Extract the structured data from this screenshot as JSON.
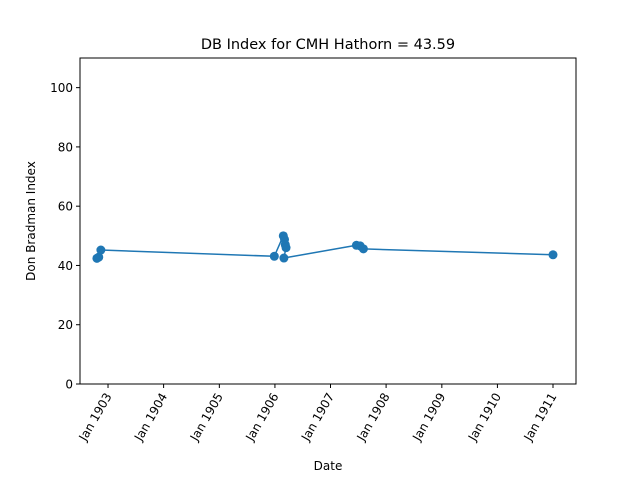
{
  "chart_data": {
    "type": "line",
    "title": "DB Index for CMH Hathorn = 43.59",
    "xlabel": "Date",
    "ylabel": "Don Bradman Index",
    "xlim": [
      "1902-07-01",
      "1911-06-01"
    ],
    "ylim": [
      0,
      110
    ],
    "yticks": [
      0,
      20,
      40,
      60,
      80,
      100
    ],
    "xticks": [
      {
        "date": "1903-01-01",
        "label": "Jan 1903"
      },
      {
        "date": "1904-01-01",
        "label": "Jan 1904"
      },
      {
        "date": "1905-01-01",
        "label": "Jan 1905"
      },
      {
        "date": "1906-01-01",
        "label": "Jan 1906"
      },
      {
        "date": "1907-01-01",
        "label": "Jan 1907"
      },
      {
        "date": "1908-01-01",
        "label": "Jan 1908"
      },
      {
        "date": "1909-01-01",
        "label": "Jan 1909"
      },
      {
        "date": "1910-01-01",
        "label": "Jan 1910"
      },
      {
        "date": "1911-01-01",
        "label": "Jan 1911"
      }
    ],
    "grid": false,
    "color": "#1f77b4",
    "series": [
      {
        "points": [
          {
            "x": "1902-10-20",
            "y": 42.4
          },
          {
            "x": "1902-11-01",
            "y": 42.8
          },
          {
            "x": "1902-11-15",
            "y": 45.2
          },
          {
            "x": "1905-12-28",
            "y": 43.1
          },
          {
            "x": "1906-02-25",
            "y": 50.0
          },
          {
            "x": "1906-03-05",
            "y": 48.8
          },
          {
            "x": "1906-03-10",
            "y": 47.0
          },
          {
            "x": "1906-03-15",
            "y": 46.0
          },
          {
            "x": "1906-03-01",
            "y": 42.5
          },
          {
            "x": "1907-06-20",
            "y": 46.8
          },
          {
            "x": "1907-07-15",
            "y": 46.6
          },
          {
            "x": "1907-08-05",
            "y": 45.6
          },
          {
            "x": "1911-01-01",
            "y": 43.6
          }
        ]
      }
    ]
  }
}
